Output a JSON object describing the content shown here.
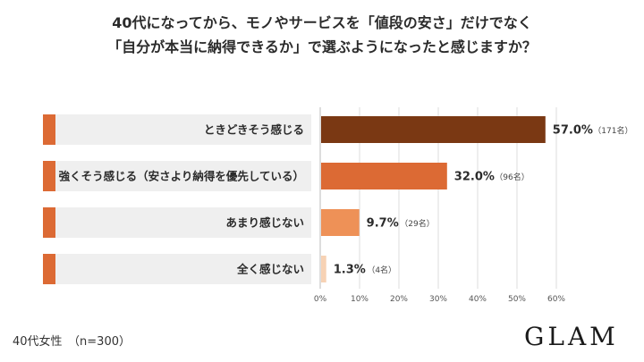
{
  "title": {
    "line1": "40代になってから、モノやサービスを「値段の安さ」だけでなく",
    "line2": "「自分が本当に納得できるか」で選ぶようになったと感じますか？"
  },
  "footnote": "40代女性　（n=300）",
  "logo": "GLAM",
  "chart_data": {
    "type": "bar",
    "orientation": "horizontal",
    "categories": [
      "ときどきそう感じる",
      "強くそう感じる（安さより納得を優先している）",
      "あまり感じない",
      "全く感じない"
    ],
    "values": [
      57.0,
      32.0,
      9.7,
      1.3
    ],
    "value_labels": [
      "57.0%",
      "32.0%",
      "9.7%",
      "1.3%"
    ],
    "count_labels": [
      "（171名）",
      "（96名）",
      "（29名）",
      "（4名）"
    ],
    "bar_colors": [
      "#7a3813",
      "#dc6a34",
      "#ee9157",
      "#f7d2b4"
    ],
    "xlim": [
      0,
      60
    ],
    "x_ticks": [
      "0%",
      "10%",
      "20%",
      "30%",
      "40%",
      "50%",
      "60%"
    ],
    "grid": true,
    "accent_color": "#dc6a34"
  }
}
